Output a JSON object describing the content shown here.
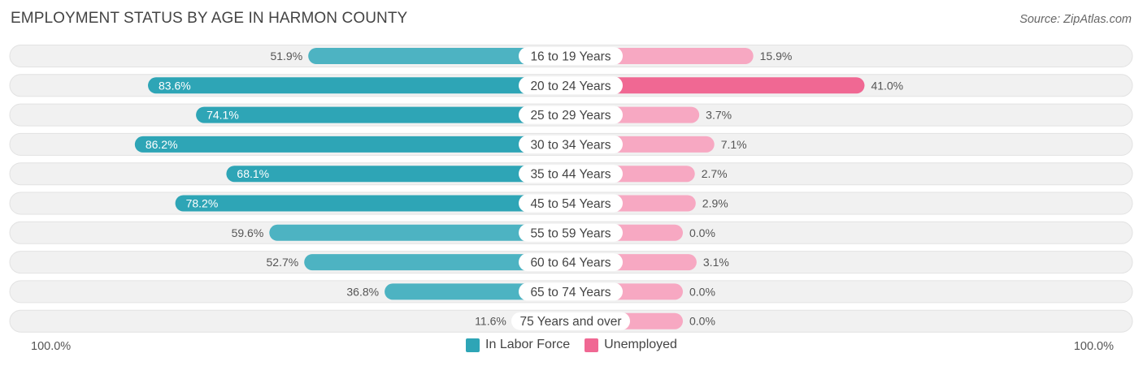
{
  "chart_data": {
    "type": "bar",
    "orientation": "diverging-horizontal",
    "title": "EMPLOYMENT STATUS BY AGE IN HARMON COUNTY",
    "source": "Source: ZipAtlas.com",
    "categories": [
      "16 to 19 Years",
      "20 to 24 Years",
      "25 to 29 Years",
      "30 to 34 Years",
      "35 to 44 Years",
      "45 to 54 Years",
      "55 to 59 Years",
      "60 to 64 Years",
      "65 to 74 Years",
      "75 Years and over"
    ],
    "series": [
      {
        "name": "In Labor Force",
        "color": "#4db3c2",
        "color_strong": "#2ea5b6",
        "values": [
          51.9,
          83.6,
          74.1,
          86.2,
          68.1,
          78.2,
          59.6,
          52.7,
          36.8,
          11.6
        ],
        "labels": [
          "51.9%",
          "83.6%",
          "74.1%",
          "86.2%",
          "68.1%",
          "78.2%",
          "59.6%",
          "52.7%",
          "36.8%",
          "11.6%"
        ]
      },
      {
        "name": "Unemployed",
        "color": "#f7a8c2",
        "color_strong": "#f06893",
        "values": [
          15.9,
          41.0,
          3.7,
          7.1,
          2.7,
          2.9,
          0.0,
          3.1,
          0.0,
          0.0
        ],
        "labels": [
          "15.9%",
          "41.0%",
          "3.7%",
          "7.1%",
          "2.7%",
          "2.9%",
          "0.0%",
          "3.1%",
          "0.0%",
          "0.0%"
        ]
      }
    ],
    "axis": {
      "left_label": "100.0%",
      "right_label": "100.0%",
      "range": [
        -100,
        100
      ]
    },
    "legend": [
      "In Labor Force",
      "Unemployed"
    ]
  }
}
